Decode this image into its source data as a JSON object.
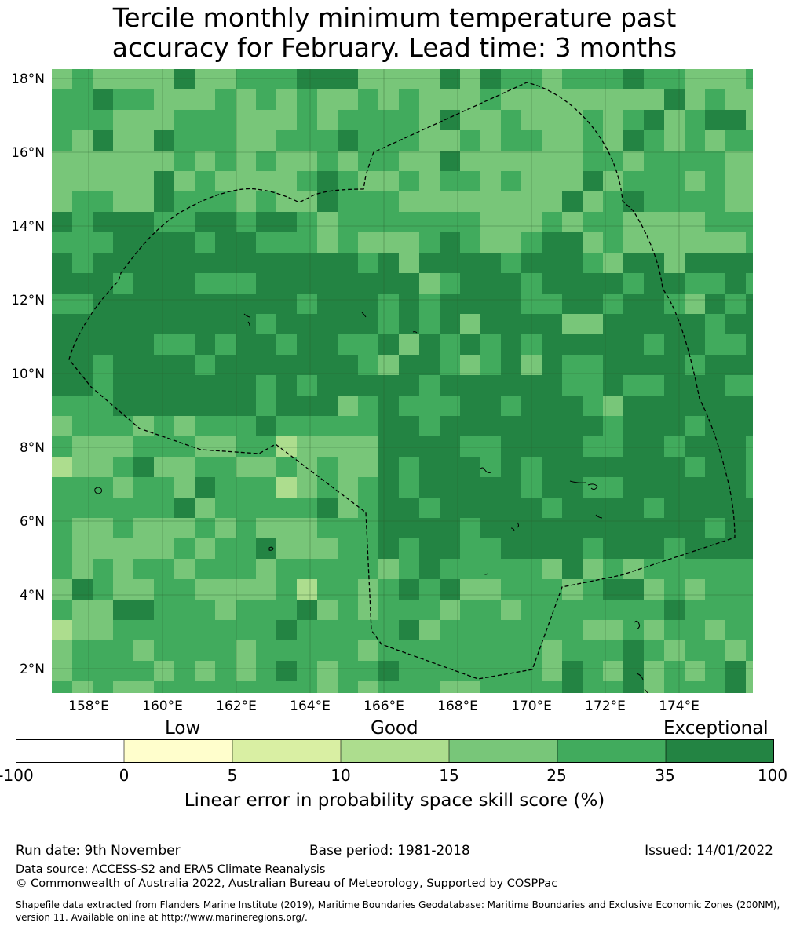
{
  "title": {
    "line1": "Tercile monthly minimum temperature past",
    "line2": "accuracy for February. Lead time: 3 months"
  },
  "map": {
    "lat_labels": [
      "18°N",
      "16°N",
      "14°N",
      "12°N",
      "10°N",
      "8°N",
      "6°N",
      "4°N",
      "2°N"
    ],
    "lon_labels": [
      "158°E",
      "160°E",
      "162°E",
      "164°E",
      "166°E",
      "168°E",
      "170°E",
      "172°E",
      "174°E"
    ],
    "boundary_color": "#000000"
  },
  "colorbar": {
    "category_labels": {
      "low": "Low",
      "good": "Good",
      "exceptional": "Exceptional"
    },
    "ticks": [
      "-100",
      "0",
      "5",
      "10",
      "15",
      "25",
      "35",
      "100"
    ],
    "colors": [
      "#ffffff",
      "#fffecc",
      "#d9efa3",
      "#addd8e",
      "#78c679",
      "#41ab5d",
      "#238443"
    ],
    "label": "Linear error in probability space skill score (%)"
  },
  "footer": {
    "run_date": "Run date: 9th November",
    "base_period": "Base period: 1981-2018",
    "issued": "Issued: 14/01/2022",
    "data_source": "Data source: ACCESS-S2 and ERA5 Climate Reanalysis",
    "copyright": "© Commonwealth of Australia 2022, Australian Bureau of Meteorology, Supported by COSPPac",
    "shapefile_line1": "Shapefile data extracted from Flanders Marine Institute (2019), Maritime Boundaries Geodatabase: Maritime Boundaries and Exclusive Economic Zones (200NM),",
    "shapefile_line2": "version 11. Available online at http://www.marineregions.org/."
  }
}
